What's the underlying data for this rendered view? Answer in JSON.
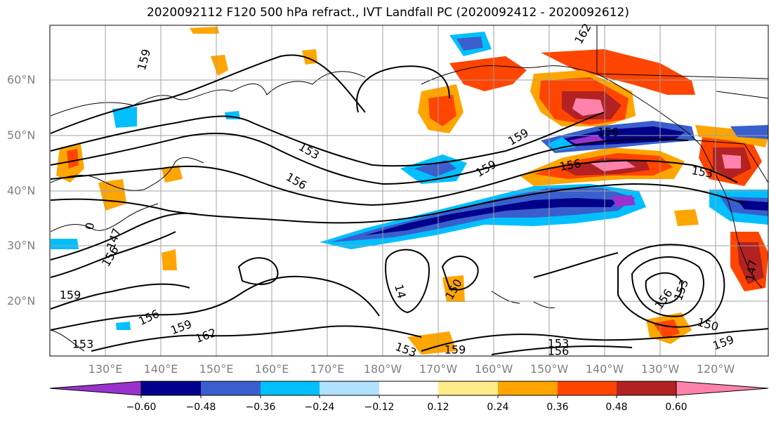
{
  "title": "2020092112 F120 500 hPa refract., IVT Landfall PC (2020092412 - 2020092612)",
  "lat_labels": [
    "60°N",
    "50°N",
    "40°N",
    "30°N",
    "20°N"
  ],
  "lon_labels": [
    "130°E",
    "140°E",
    "150°E",
    "160°E",
    "170°E",
    "180°W",
    "170°W",
    "160°W",
    "150°W",
    "140°W",
    "130°W",
    "120°W"
  ],
  "colorbar": {
    "ticks": [
      "−0.60",
      "−0.48",
      "−0.36",
      "−0.24",
      "−0.12",
      "0.12",
      "0.24",
      "0.36",
      "0.48",
      "0.60"
    ],
    "colors": [
      "#9932cc",
      "#00008b",
      "#3a5fcd",
      "#00bfff",
      "#b0e2ff",
      "#ffffff",
      "#ffec8b",
      "#ffa500",
      "#ff4500",
      "#b22222",
      "#ff82ab"
    ]
  },
  "contour_labels": [
    "159",
    "153",
    "156",
    "159",
    "159",
    "156",
    "162",
    "153",
    "156",
    "159",
    "159",
    "156",
    "162",
    "153",
    "156",
    "153",
    "150",
    "153",
    "156",
    "159",
    "159",
    "153",
    "156",
    "14",
    "147",
    "150",
    "147",
    "0"
  ],
  "colors": {
    "purple": "#9932cc",
    "navy": "#00008b",
    "blue": "#3a5fcd",
    "sky": "#00bfff",
    "pale_blue": "#b0e2ff",
    "yellow": "#ffec8b",
    "orange": "#ffa500",
    "red_orange": "#ff4500",
    "dark_red": "#b22222",
    "pink": "#ff82ab",
    "grid": "#a0a0a0",
    "axis_label": "#808080"
  }
}
